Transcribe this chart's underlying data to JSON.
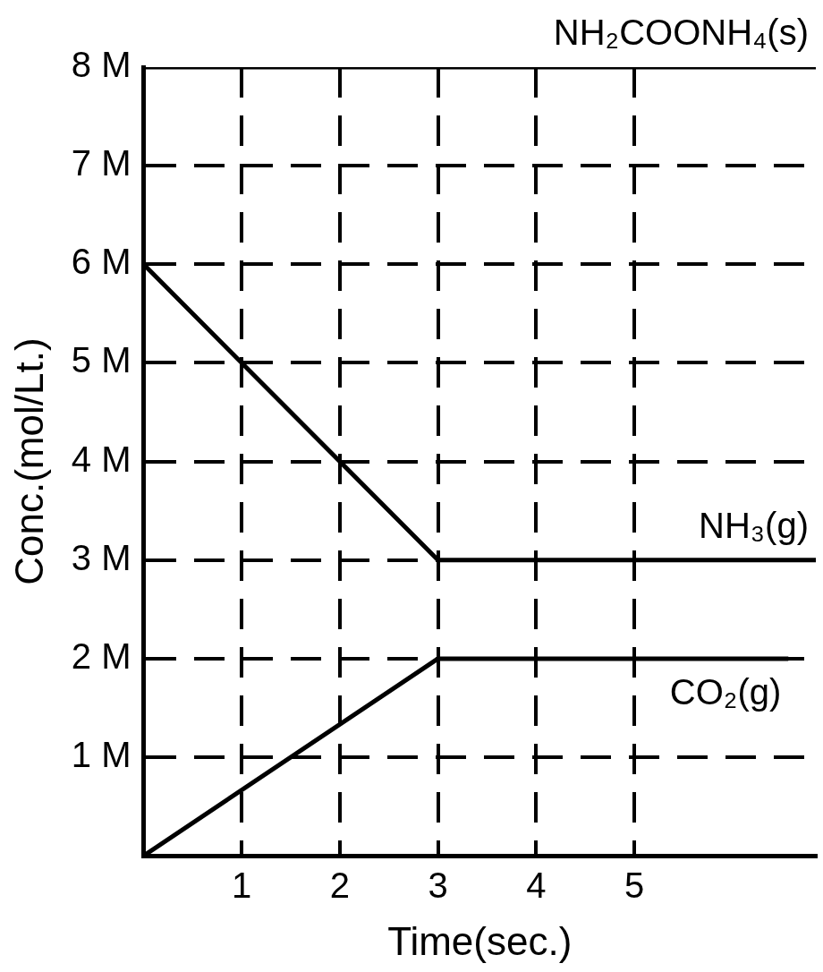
{
  "chart_data": {
    "type": "line",
    "xlabel": "Time(sec.)",
    "ylabel": "Conc.(mol/Lt.)",
    "xlim": [
      0,
      6.85
    ],
    "xticks": [
      1,
      2,
      3,
      4,
      5
    ],
    "ylim": [
      0,
      8
    ],
    "yticks": [
      {
        "value": 1,
        "label": "1 M"
      },
      {
        "value": 2,
        "label": "2 M"
      },
      {
        "value": 3,
        "label": "3 M"
      },
      {
        "value": 4,
        "label": "4 M"
      },
      {
        "value": 5,
        "label": "5 M"
      },
      {
        "value": 6,
        "label": "6 M"
      },
      {
        "value": 7,
        "label": "7 M"
      },
      {
        "value": 8,
        "label": "8 M"
      }
    ],
    "grid": true,
    "legend": false,
    "marker": "none",
    "line_style": "solid",
    "series": [
      {
        "name": "NH₂COONH₄(s)",
        "color": "#000000",
        "x": [
          0,
          6.85
        ],
        "values": [
          8,
          8
        ]
      },
      {
        "name": "NH₃(g)",
        "color": "#000000",
        "x": [
          0,
          3,
          6.85
        ],
        "values": [
          6,
          3,
          3
        ]
      },
      {
        "name": "CO₂(g)",
        "color": "#000000",
        "x": [
          0,
          3,
          6.57
        ],
        "values": [
          0,
          2,
          2
        ]
      }
    ]
  }
}
